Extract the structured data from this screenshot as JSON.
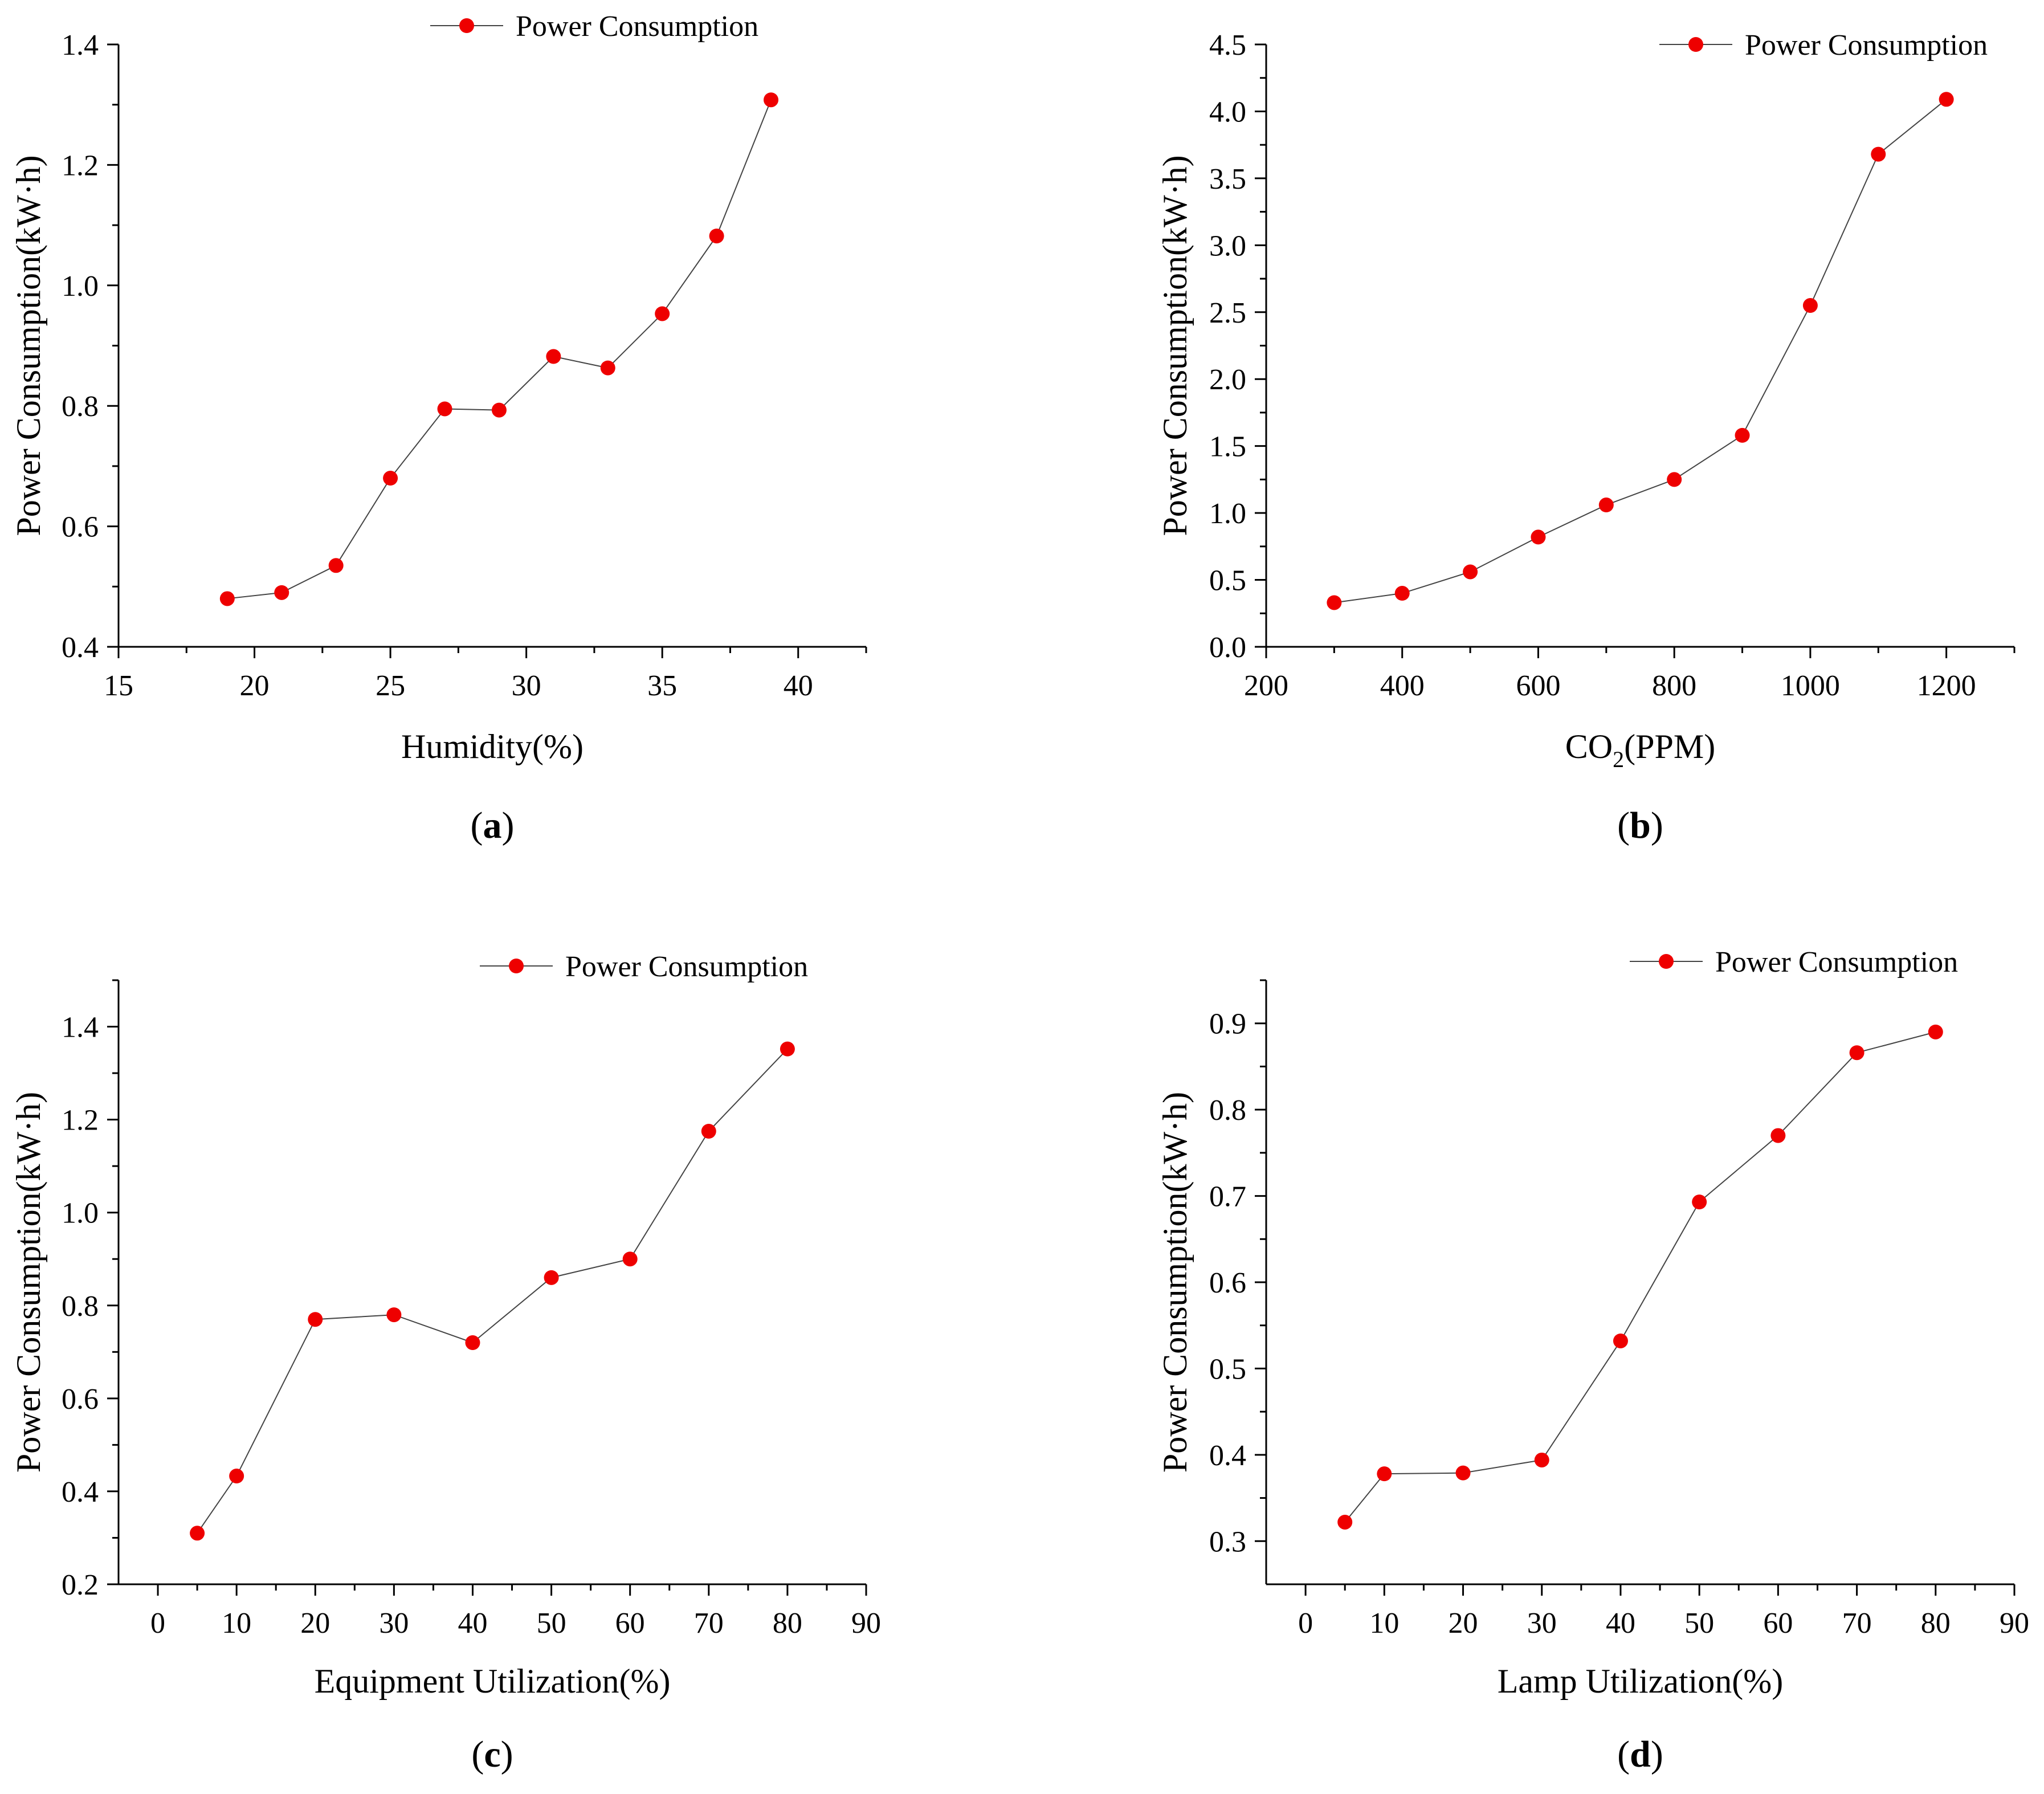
{
  "figure": {
    "panel_labels": [
      "a",
      "b",
      "c",
      "d"
    ]
  },
  "colors": {
    "marker": "#ee0000",
    "line": "#444444",
    "axis": "#000000"
  },
  "chart_data": [
    {
      "id": "a",
      "type": "line",
      "panel_label": "a",
      "xlabel": "Humidity(%)",
      "ylabel": "Power Consumption(kW·h)",
      "legend": "Power Consumption",
      "legend_position": "top-right",
      "grid": false,
      "xlim": [
        15,
        42.5
      ],
      "ylim": [
        0.4,
        1.4
      ],
      "xticks": [
        15,
        20,
        25,
        30,
        35,
        40
      ],
      "xtick_labels": [
        "15",
        "20",
        "25",
        "30",
        "35",
        "40"
      ],
      "yticks": [
        0.4,
        0.6,
        0.8,
        1.0,
        1.2,
        1.4
      ],
      "ytick_labels": [
        "0.4",
        "0.6",
        "0.8",
        "1.0",
        "1.2",
        "1.4"
      ],
      "series": [
        {
          "name": "Power Consumption",
          "x": [
            19,
            21,
            23,
            25,
            27,
            29,
            31,
            33,
            35,
            37,
            39
          ],
          "y": [
            0.48,
            0.49,
            0.535,
            0.68,
            0.795,
            0.793,
            0.882,
            0.863,
            0.953,
            1.082,
            1.308
          ]
        }
      ]
    },
    {
      "id": "b",
      "type": "line",
      "panel_label": "b",
      "xlabel_main": "CO",
      "xlabel_sub": "2",
      "xlabel_tail": "(PPM)",
      "ylabel": "Power Consumption(kW·h)",
      "legend": "Power Consumption",
      "legend_position": "top-right",
      "grid": false,
      "xlim": [
        200,
        1300
      ],
      "ylim": [
        0.0,
        4.5
      ],
      "xticks": [
        200,
        400,
        600,
        800,
        1000,
        1200
      ],
      "xtick_labels": [
        "200",
        "400",
        "600",
        "800",
        "1000",
        "1200"
      ],
      "yticks": [
        0.0,
        0.5,
        1.0,
        1.5,
        2.0,
        2.5,
        3.0,
        3.5,
        4.0,
        4.5
      ],
      "ytick_labels": [
        "0.0",
        "0.5",
        "1.0",
        "1.5",
        "2.0",
        "2.5",
        "3.0",
        "3.5",
        "4.0",
        "4.5"
      ],
      "series": [
        {
          "name": "Power Consumption",
          "x": [
            300,
            400,
            500,
            600,
            700,
            800,
            900,
            1000,
            1100,
            1200
          ],
          "y": [
            0.33,
            0.4,
            0.56,
            0.82,
            1.06,
            1.25,
            1.58,
            2.55,
            3.68,
            4.09
          ]
        }
      ]
    },
    {
      "id": "c",
      "type": "line",
      "panel_label": "c",
      "xlabel": "Equipment Utilization(%)",
      "ylabel": "Power Consumption(kW·h)",
      "legend": "Power Consumption",
      "legend_position": "top-right",
      "grid": false,
      "xlim": [
        -5,
        90
      ],
      "ylim": [
        0.2,
        1.5
      ],
      "xticks": [
        0,
        10,
        20,
        30,
        40,
        50,
        60,
        70,
        80,
        90
      ],
      "xtick_labels": [
        "0",
        "10",
        "20",
        "30",
        "40",
        "50",
        "60",
        "70",
        "80",
        "90"
      ],
      "yticks": [
        0.2,
        0.4,
        0.6,
        0.8,
        1.0,
        1.2,
        1.4
      ],
      "ytick_labels": [
        "0.2",
        "0.4",
        "0.6",
        "0.8",
        "1.0",
        "1.2",
        "1.4"
      ],
      "series": [
        {
          "name": "Power Consumption",
          "x": [
            5,
            10,
            20,
            30,
            40,
            50,
            60,
            70,
            80
          ],
          "y": [
            0.31,
            0.433,
            0.77,
            0.78,
            0.72,
            0.86,
            0.9,
            1.175,
            1.352
          ]
        }
      ]
    },
    {
      "id": "d",
      "type": "line",
      "panel_label": "d",
      "xlabel": "Lamp Utilization(%)",
      "ylabel": "Power Consumption(kW·h)",
      "legend": "Power Consumption",
      "legend_position": "top-right",
      "grid": false,
      "xlim": [
        -5,
        90
      ],
      "ylim": [
        0.25,
        0.95
      ],
      "xticks": [
        0,
        10,
        20,
        30,
        40,
        50,
        60,
        70,
        80,
        90
      ],
      "xtick_labels": [
        "0",
        "10",
        "20",
        "30",
        "40",
        "50",
        "60",
        "70",
        "80",
        "90"
      ],
      "yticks": [
        0.3,
        0.4,
        0.5,
        0.6,
        0.7,
        0.8,
        0.9
      ],
      "ytick_labels": [
        "0.3",
        "0.4",
        "0.5",
        "0.6",
        "0.7",
        "0.8",
        "0.9"
      ],
      "series": [
        {
          "name": "Power Consumption",
          "x": [
            5,
            10,
            20,
            30,
            40,
            50,
            60,
            70,
            80
          ],
          "y": [
            0.322,
            0.378,
            0.379,
            0.394,
            0.532,
            0.693,
            0.77,
            0.866,
            0.89
          ]
        }
      ]
    }
  ]
}
